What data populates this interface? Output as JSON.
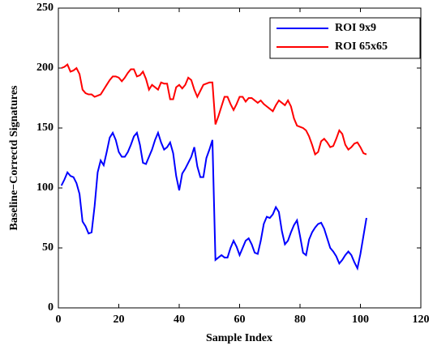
{
  "chart_data": {
    "type": "line",
    "xlabel": "Sample Index",
    "ylabel": "Baseline−Correctd Signatures",
    "xlim": [
      0,
      120
    ],
    "xticks": [
      0,
      20,
      40,
      60,
      80,
      100,
      120
    ],
    "ylim": [
      0,
      250
    ],
    "yticks": [
      0,
      50,
      100,
      150,
      200,
      250
    ],
    "legend": "upper right",
    "x": [
      1,
      2,
      3,
      4,
      5,
      6,
      7,
      8,
      9,
      10,
      11,
      12,
      13,
      14,
      15,
      16,
      17,
      18,
      19,
      20,
      21,
      22,
      23,
      24,
      25,
      26,
      27,
      28,
      29,
      30,
      31,
      32,
      33,
      34,
      35,
      36,
      37,
      38,
      39,
      40,
      41,
      42,
      43,
      44,
      45,
      46,
      47,
      48,
      49,
      50,
      51,
      52,
      53,
      54,
      55,
      56,
      57,
      58,
      59,
      60,
      61,
      62,
      63,
      64,
      65,
      66,
      67,
      68,
      69,
      70,
      71,
      72,
      73,
      74,
      75,
      76,
      77,
      78,
      79,
      80,
      81,
      82,
      83,
      84,
      85,
      86,
      87,
      88,
      89,
      90,
      91,
      92,
      93,
      94,
      95,
      96,
      97,
      98,
      99,
      100,
      101,
      102
    ],
    "series": [
      {
        "name": "ROI 9x9",
        "color": "#0000ff",
        "values": [
          102,
          107,
          113,
          110,
          109,
          104,
          95,
          72,
          68,
          62,
          63,
          85,
          113,
          123,
          119,
          130,
          142,
          146,
          140,
          130,
          126,
          126,
          130,
          136,
          143,
          146,
          136,
          121,
          120,
          126,
          132,
          140,
          146,
          138,
          132,
          134,
          138,
          129,
          110,
          98,
          112,
          116,
          121,
          126,
          134,
          118,
          109,
          109,
          125,
          132,
          140,
          40,
          42,
          44,
          42,
          42,
          50,
          56,
          51,
          44,
          50,
          56,
          58,
          53,
          46,
          45,
          56,
          70,
          76,
          75,
          78,
          84,
          80,
          64,
          53,
          56,
          63,
          69,
          73,
          60,
          46,
          44,
          57,
          63,
          67,
          70,
          71,
          66,
          58,
          50,
          47,
          43,
          37,
          40,
          44,
          47,
          44,
          38,
          33,
          45,
          60,
          75
        ]
      },
      {
        "name": "ROI 65x65",
        "color": "#ff0000",
        "values": [
          200,
          201,
          203,
          197,
          198,
          200,
          195,
          182,
          179,
          178,
          178,
          176,
          177,
          178,
          182,
          186,
          190,
          193,
          193,
          192,
          189,
          192,
          196,
          199,
          199,
          193,
          194,
          197,
          191,
          182,
          186,
          184,
          182,
          188,
          187,
          187,
          174,
          174,
          184,
          186,
          183,
          186,
          192,
          190,
          182,
          176,
          181,
          186,
          187,
          188,
          188,
          153,
          160,
          168,
          176,
          176,
          170,
          165,
          170,
          176,
          176,
          172,
          175,
          175,
          173,
          171,
          173,
          170,
          168,
          166,
          164,
          169,
          173,
          171,
          169,
          173,
          168,
          158,
          152,
          151,
          150,
          148,
          143,
          136,
          128,
          130,
          139,
          141,
          138,
          134,
          135,
          141,
          148,
          145,
          136,
          132,
          134,
          137,
          138,
          134,
          129,
          128
        ]
      }
    ]
  }
}
